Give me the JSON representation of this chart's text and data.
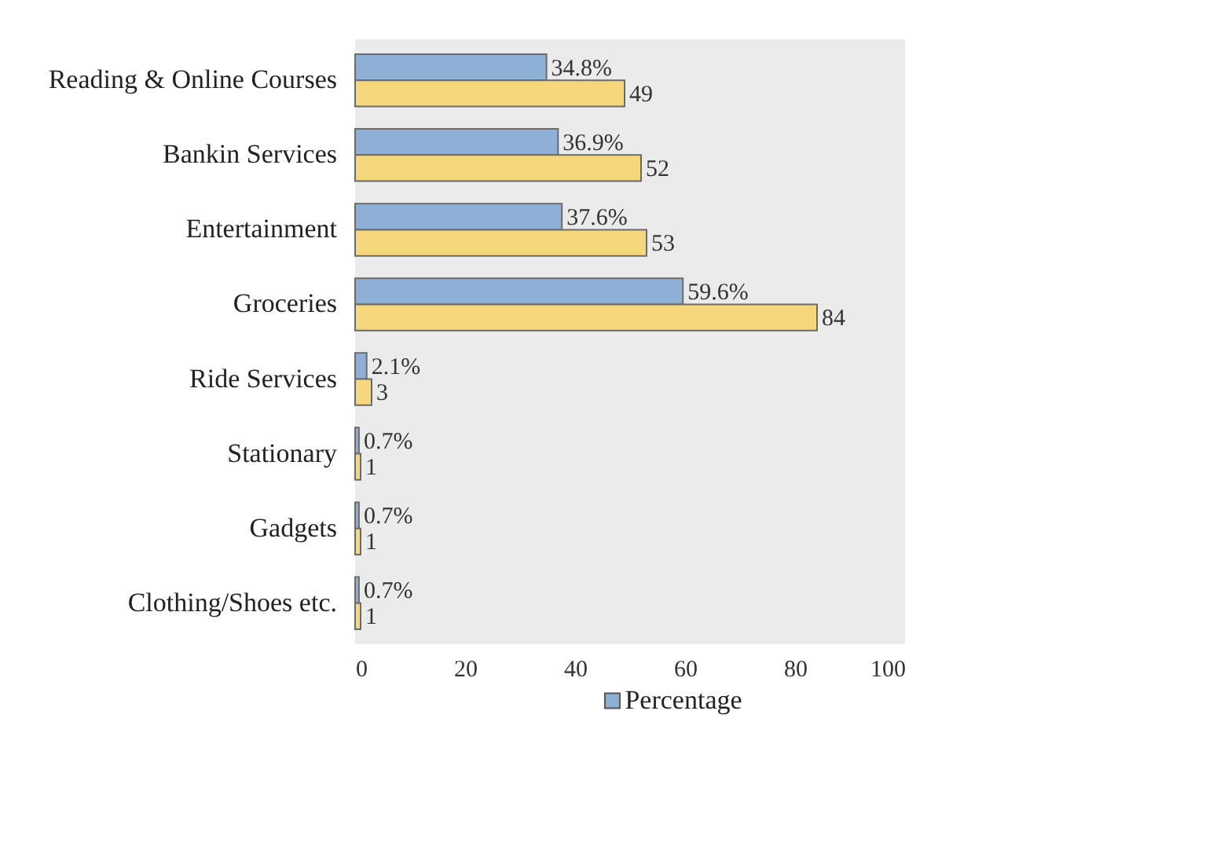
{
  "chart_data": {
    "type": "bar",
    "orientation": "horizontal",
    "categories": [
      "Reading & Online Courses",
      "Bankin Services",
      "Entertainment",
      "Groceries",
      "Ride Services",
      "Stationary",
      "Gadgets",
      "Clothing/Shoes etc."
    ],
    "series": [
      {
        "name": "Percentage",
        "color": "#8fb0d6",
        "values": [
          34.8,
          36.9,
          37.6,
          59.6,
          2.1,
          0.7,
          0.7,
          0.7
        ],
        "value_labels": [
          "34.8%",
          "36.9%",
          "37.6%",
          "59.6%",
          "2.1%",
          "0.7%",
          "0.7%",
          "0.7%"
        ]
      },
      {
        "color": "#f7d77c",
        "values": [
          49,
          52,
          53,
          84,
          3,
          1,
          1,
          1
        ],
        "value_labels": [
          "49",
          "52",
          "53",
          "84",
          "3",
          "1",
          "1",
          "1"
        ]
      }
    ],
    "xlim": [
      0,
      100
    ],
    "xticks": [
      0,
      20,
      40,
      60,
      80,
      100
    ],
    "legend": "bottom"
  }
}
